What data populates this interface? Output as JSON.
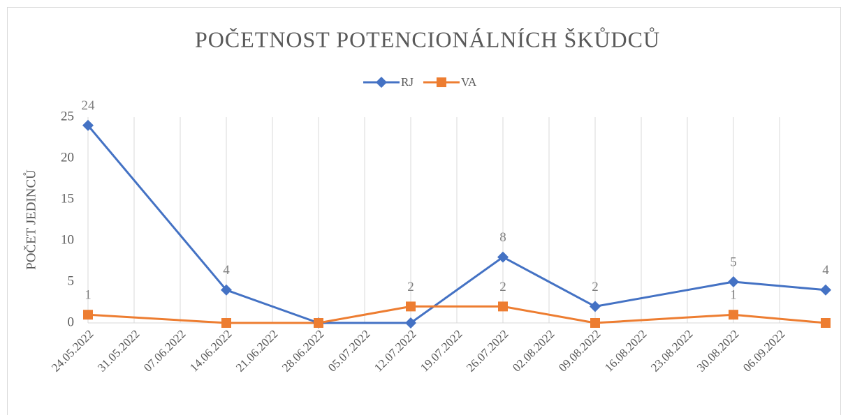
{
  "chart_data": {
    "type": "line",
    "title": "POČETNOST POTENCIONÁLNÍCH ŠKŮDCŮ",
    "y_label": "POČET JEDINCŮ",
    "x": [
      "2022-05-24",
      "2022-06-14",
      "2022-06-28",
      "2022-07-12",
      "2022-07-26",
      "2022-08-09",
      "2022-08-30",
      "2022-09-13"
    ],
    "series": [
      {
        "name": "RJ",
        "color": "#4472c4",
        "marker": "diamond",
        "values": [
          24,
          4,
          0,
          0,
          8,
          2,
          5,
          4
        ],
        "value_labels": [
          "24",
          "4",
          null,
          null,
          "8",
          "2",
          "5",
          "4"
        ]
      },
      {
        "name": "VA",
        "color": "#ed7d31",
        "marker": "square",
        "values": [
          1,
          0,
          0,
          2,
          2,
          0,
          1,
          0
        ],
        "value_labels": [
          "1",
          null,
          null,
          "2",
          "2",
          null,
          "1",
          null
        ]
      }
    ],
    "xlim": [
      "2022-05-24",
      "2022-09-13"
    ],
    "xticks": [
      {
        "value": "2022-05-24",
        "label": "24.05.2022"
      },
      {
        "value": "2022-05-31",
        "label": "31.05.2022"
      },
      {
        "value": "2022-06-07",
        "label": "07.06.2022"
      },
      {
        "value": "2022-06-14",
        "label": "14.06.2022"
      },
      {
        "value": "2022-06-21",
        "label": "21.06.2022"
      },
      {
        "value": "2022-06-28",
        "label": "28.06.2022"
      },
      {
        "value": "2022-07-05",
        "label": "05.07.2022"
      },
      {
        "value": "2022-07-12",
        "label": "12.07.2022"
      },
      {
        "value": "2022-07-19",
        "label": "19.07.2022"
      },
      {
        "value": "2022-07-26",
        "label": "26.07.2022"
      },
      {
        "value": "2022-08-02",
        "label": "02.08.2022"
      },
      {
        "value": "2022-08-09",
        "label": "09.08.2022"
      },
      {
        "value": "2022-08-16",
        "label": "16.08.2022"
      },
      {
        "value": "2022-08-23",
        "label": "23.08.2022"
      },
      {
        "value": "2022-08-30",
        "label": "30.08.2022"
      },
      {
        "value": "2022-09-06",
        "label": "06.09.2022"
      }
    ],
    "ylim": [
      0,
      25
    ],
    "yticks": [
      0,
      5,
      10,
      15,
      20,
      25
    ],
    "grid": "x",
    "legend": "top"
  }
}
